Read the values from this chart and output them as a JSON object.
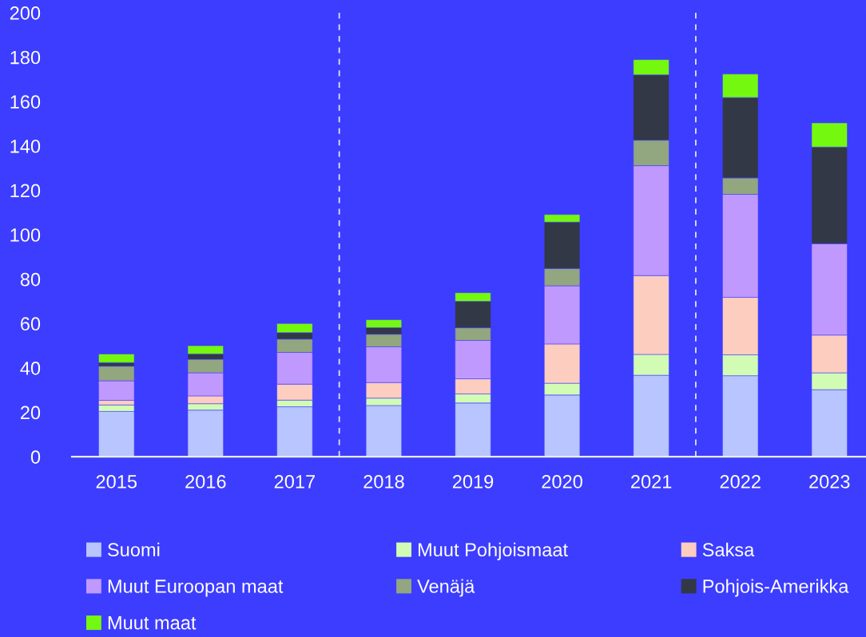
{
  "chart_data": {
    "type": "bar",
    "stacked": true,
    "categories": [
      "2015",
      "2016",
      "2017",
      "2018",
      "2019",
      "2020",
      "2021",
      "2022",
      "2023"
    ],
    "ylim": [
      0,
      200
    ],
    "yticks": [
      0,
      20,
      40,
      60,
      80,
      100,
      120,
      140,
      160,
      180,
      200
    ],
    "grid": false,
    "legend": "bottom",
    "series": [
      {
        "name": "Suomi",
        "color": "#b8c5ff",
        "values": [
          20.4,
          21.0,
          22.5,
          23.1,
          24.2,
          27.8,
          36.7,
          36.5,
          30.2
        ]
      },
      {
        "name": "Muut Pohjoismaat",
        "color": "#d2fbb4",
        "values": [
          2.9,
          2.9,
          3.0,
          3.3,
          4.1,
          5.3,
          9.4,
          9.4,
          7.6
        ]
      },
      {
        "name": "Saksa",
        "color": "#fdcdbf",
        "values": [
          2.1,
          3.5,
          7.2,
          7.0,
          6.8,
          17.7,
          35.5,
          25.9,
          17.0
        ]
      },
      {
        "name": "Muut Euroopan maat",
        "color": "#c099ff",
        "values": [
          8.8,
          10.4,
          14.3,
          16.1,
          17.3,
          26.2,
          49.5,
          46.4,
          41.2
        ]
      },
      {
        "name": "Venäjä",
        "color": "#92a67f",
        "values": [
          6.6,
          6.1,
          6.0,
          5.7,
          5.7,
          7.8,
          11.5,
          7.4,
          null
        ]
      },
      {
        "name": "Pohjois-Amerikka",
        "color": "#323846",
        "values": [
          1.6,
          2.4,
          2.9,
          2.9,
          11.9,
          20.9,
          29.4,
          36.2,
          43.5
        ]
      },
      {
        "name": "Muut maat",
        "color": "#75f80f",
        "values": [
          3.9,
          3.7,
          4.1,
          3.6,
          3.9,
          3.4,
          6.9,
          10.6,
          10.9
        ]
      }
    ]
  }
}
